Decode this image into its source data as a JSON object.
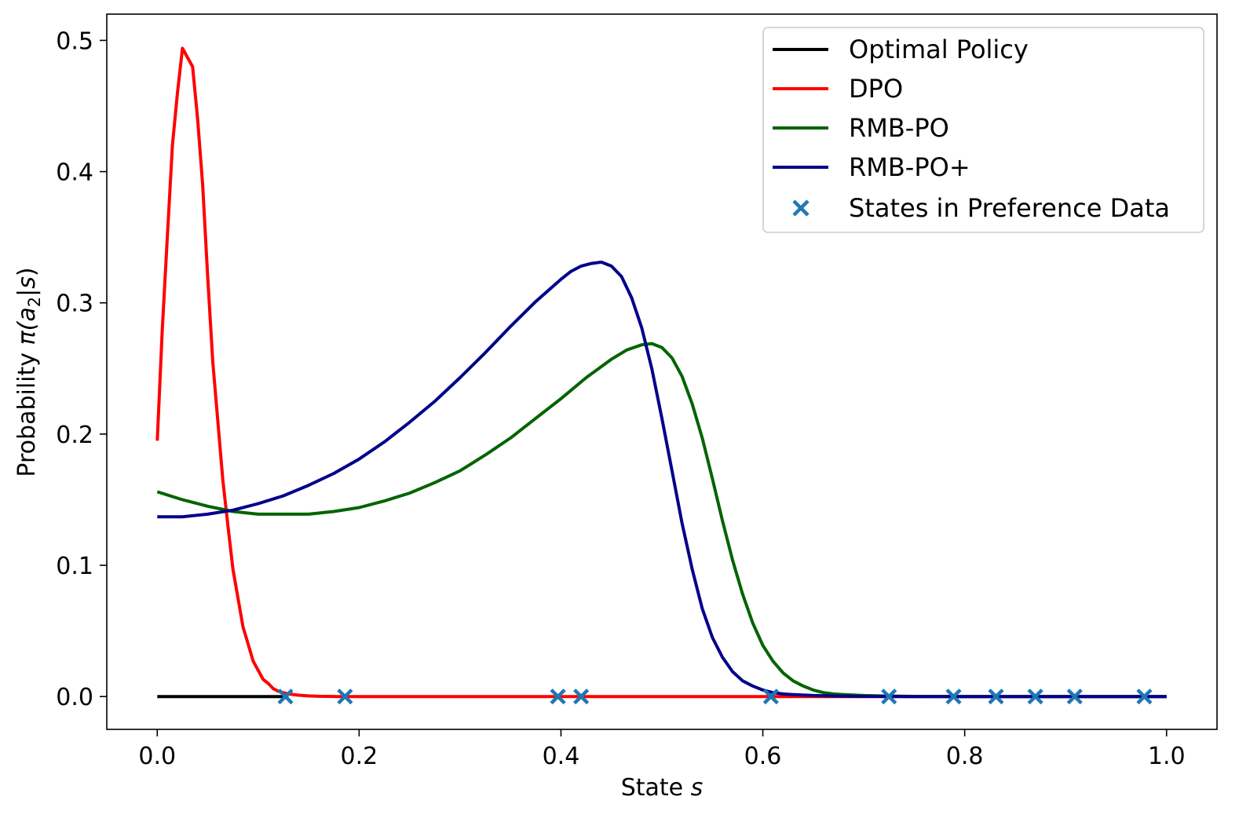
{
  "chart_data": {
    "type": "line",
    "title": "",
    "xlabel_text": "State ",
    "xlabel_symbol": "s",
    "ylabel_text": "Probability ",
    "ylabel_pi": "π(",
    "ylabel_a": "a",
    "ylabel_sub": "2",
    "ylabel_bar": "|",
    "ylabel_s": "s",
    "ylabel_close": ")",
    "xlim": [
      -0.05,
      1.05
    ],
    "ylim": [
      -0.025,
      0.52
    ],
    "xticks": [
      0.0,
      0.2,
      0.4,
      0.6,
      0.8,
      1.0
    ],
    "xtick_labels": [
      "0.0",
      "0.2",
      "0.4",
      "0.6",
      "0.8",
      "1.0"
    ],
    "yticks": [
      0.0,
      0.1,
      0.2,
      0.3,
      0.4,
      0.5
    ],
    "ytick_labels": [
      "0.0",
      "0.1",
      "0.2",
      "0.3",
      "0.4",
      "0.5"
    ],
    "grid": false,
    "legend_position": "top-right",
    "series": [
      {
        "name": "Optimal Policy",
        "color": "#000000",
        "x": [
          0.0,
          0.05,
          0.1,
          0.12,
          0.13
        ],
        "y": [
          0.0,
          0.0,
          0.0,
          0.0,
          0.0
        ]
      },
      {
        "name": "DPO",
        "color": "#ff0000",
        "x": [
          0.0,
          0.005,
          0.01,
          0.015,
          0.02,
          0.025,
          0.03,
          0.035,
          0.04,
          0.045,
          0.05,
          0.055,
          0.06,
          0.065,
          0.07,
          0.075,
          0.08,
          0.085,
          0.09,
          0.095,
          0.1,
          0.105,
          0.11,
          0.115,
          0.12,
          0.13,
          0.14,
          0.15,
          0.16,
          0.18,
          0.2,
          0.3,
          0.4,
          0.5,
          0.6,
          0.7,
          0.8,
          0.9,
          1.0
        ],
        "y": [
          0.195,
          0.28,
          0.35,
          0.42,
          0.46,
          0.494,
          0.487,
          0.48,
          0.44,
          0.39,
          0.32,
          0.255,
          0.21,
          0.165,
          0.13,
          0.097,
          0.075,
          0.053,
          0.04,
          0.027,
          0.02,
          0.013,
          0.01,
          0.006,
          0.004,
          0.002,
          0.001,
          0.0005,
          0.0002,
          0.0,
          0.0,
          0.0,
          0.0,
          0.0,
          0.0,
          0.0,
          0.0,
          0.0,
          0.0
        ]
      },
      {
        "name": "RMB-PO",
        "color": "#006400",
        "x": [
          0.0,
          0.025,
          0.05,
          0.075,
          0.1,
          0.125,
          0.15,
          0.175,
          0.2,
          0.225,
          0.25,
          0.275,
          0.3,
          0.325,
          0.35,
          0.375,
          0.4,
          0.425,
          0.45,
          0.465,
          0.48,
          0.49,
          0.5,
          0.51,
          0.52,
          0.53,
          0.54,
          0.55,
          0.56,
          0.57,
          0.58,
          0.59,
          0.6,
          0.61,
          0.62,
          0.63,
          0.64,
          0.65,
          0.66,
          0.67,
          0.68,
          0.7,
          0.72,
          0.75,
          0.8,
          0.9,
          1.0
        ],
        "y": [
          0.156,
          0.15,
          0.145,
          0.141,
          0.139,
          0.139,
          0.139,
          0.141,
          0.144,
          0.149,
          0.155,
          0.163,
          0.172,
          0.184,
          0.197,
          0.212,
          0.227,
          0.243,
          0.257,
          0.264,
          0.268,
          0.269,
          0.266,
          0.258,
          0.244,
          0.223,
          0.197,
          0.166,
          0.134,
          0.104,
          0.078,
          0.056,
          0.039,
          0.027,
          0.018,
          0.012,
          0.008,
          0.005,
          0.003,
          0.002,
          0.0015,
          0.0008,
          0.0004,
          0.0001,
          0.0,
          0.0,
          0.0
        ]
      },
      {
        "name": "RMB-PO+",
        "color": "#00008b",
        "x": [
          0.0,
          0.025,
          0.05,
          0.075,
          0.1,
          0.125,
          0.15,
          0.175,
          0.2,
          0.225,
          0.25,
          0.275,
          0.3,
          0.325,
          0.35,
          0.375,
          0.4,
          0.41,
          0.42,
          0.43,
          0.44,
          0.45,
          0.46,
          0.47,
          0.48,
          0.49,
          0.5,
          0.51,
          0.52,
          0.53,
          0.54,
          0.55,
          0.56,
          0.57,
          0.58,
          0.59,
          0.6,
          0.61,
          0.62,
          0.63,
          0.65,
          0.67,
          0.7,
          0.75,
          0.8,
          0.9,
          1.0
        ],
        "y": [
          0.137,
          0.137,
          0.139,
          0.142,
          0.147,
          0.153,
          0.161,
          0.17,
          0.181,
          0.194,
          0.209,
          0.225,
          0.243,
          0.262,
          0.282,
          0.301,
          0.318,
          0.324,
          0.328,
          0.33,
          0.331,
          0.328,
          0.32,
          0.304,
          0.281,
          0.25,
          0.212,
          0.172,
          0.132,
          0.097,
          0.067,
          0.045,
          0.03,
          0.019,
          0.012,
          0.008,
          0.005,
          0.003,
          0.002,
          0.0015,
          0.0008,
          0.0004,
          0.0001,
          0.0,
          0.0,
          0.0,
          0.0
        ]
      }
    ],
    "scatter": {
      "name": "States in Preference Data",
      "color": "#1f77b4",
      "x": [
        0.127,
        0.186,
        0.397,
        0.42,
        0.608,
        0.725,
        0.789,
        0.831,
        0.87,
        0.909,
        0.978
      ],
      "y": [
        0.0,
        0.0,
        0.0,
        0.0,
        0.0,
        0.0,
        0.0,
        0.0,
        0.0,
        0.0,
        0.0
      ]
    }
  }
}
